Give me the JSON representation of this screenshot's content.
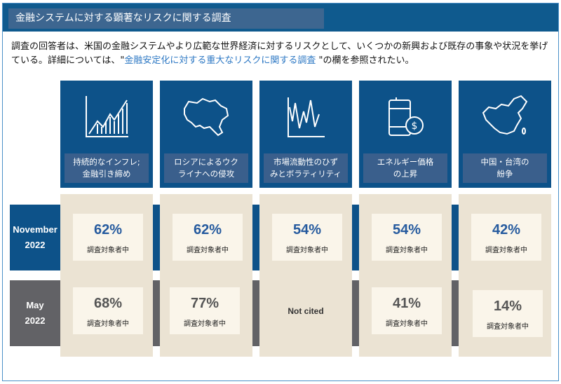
{
  "header": {
    "title": "金融システムに対する顕著なリスクに関する調査"
  },
  "intro": {
    "text_before": "調査の回答者は、米国の金融システムやより広範な世界経済に対するリスクとして、いくつかの新興および既存の事象や状況を挙げている。詳細については、\"",
    "link": "金融安定化に対する重大なリスクに関する調査",
    "text_after": " \"の欄を参照されたい。"
  },
  "rows": [
    {
      "month": "November",
      "year": "2022",
      "color": "#0d5289"
    },
    {
      "month": "May",
      "year": "2022",
      "color": "#626266"
    }
  ],
  "risks": [
    {
      "icon": "rising-chart-icon",
      "label1": "持続的なインフレ;",
      "label2": "金融引き締め",
      "nov": "62%",
      "nov_sub": "調査対象者中",
      "may": "68%",
      "may_sub": "調査対象者中"
    },
    {
      "icon": "ukraine-map-icon",
      "label1": "ロシアによるウク",
      "label2": "ライナへの侵攻",
      "nov": "62%",
      "nov_sub": "調査対象者中",
      "may": "77%",
      "may_sub": "調査対象者中"
    },
    {
      "icon": "volatility-chart-icon",
      "label1": "市場流動性のひず",
      "label2": "みとボラティリティ",
      "nov": "54%",
      "nov_sub": "調査対象者中",
      "may_text": "Not cited"
    },
    {
      "icon": "oil-barrel-dollar-icon",
      "label1": "エネルギー価格",
      "label2": "の上昇",
      "nov": "54%",
      "nov_sub": "調査対象者中",
      "may": "41%",
      "may_sub": "調査対象者中"
    },
    {
      "icon": "china-map-icon",
      "label1": "中国・台湾の",
      "label2": "紛争",
      "nov": "42%",
      "nov_sub": "調査対象者中",
      "may": "14%",
      "may_sub": "調査対象者中"
    }
  ]
}
